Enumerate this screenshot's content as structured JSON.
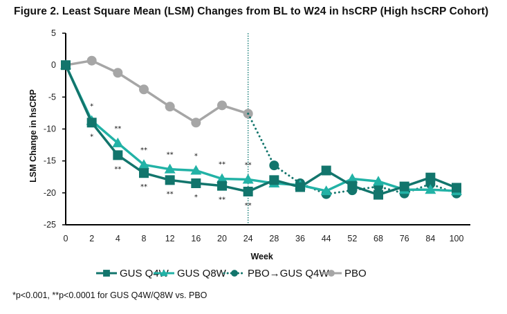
{
  "title": "Figure 2. Least Square Mean (LSM) Changes from BL to W24 in hsCRP (High hsCRP Cohort)",
  "footnote": "*p<0.001, **p<0.0001 for GUS Q4W/Q8W vs. PBO",
  "chart_data": {
    "type": "line",
    "title": "Figure 2. Least Square Mean (LSM) Changes from BL to W24 in hsCRP (High hsCRP Cohort)",
    "xlabel": "Week",
    "ylabel": "LSM Change in hsCRP",
    "categories": [
      "0",
      "2",
      "4",
      "8",
      "12",
      "16",
      "20",
      "24",
      "28",
      "36",
      "44",
      "52",
      "68",
      "76",
      "84",
      "100"
    ],
    "ylim": [
      -25,
      5
    ],
    "yticks": [
      5,
      0,
      -5,
      -10,
      -15,
      -20,
      -25
    ],
    "grid": false,
    "legend_position": "bottom",
    "reference_line": {
      "x_category": "24",
      "style": "dotted",
      "color": "#1B7F7A"
    },
    "series": [
      {
        "name": "GUS Q4W",
        "color": "#12756C",
        "marker": "square",
        "line": "solid",
        "values": [
          0,
          -9.0,
          -14.1,
          -16.9,
          -18.0,
          -18.5,
          -18.9,
          -19.8,
          -18.0,
          -19.1,
          -16.5,
          -18.9,
          -20.3,
          -19.0,
          -17.6,
          -19.2
        ]
      },
      {
        "name": "GUS Q8W",
        "color": "#22B2A6",
        "marker": "triangle",
        "line": "solid",
        "values": [
          0,
          -8.7,
          -12.2,
          -15.6,
          -16.3,
          -16.5,
          -17.8,
          -17.9,
          -18.5,
          -18.8,
          -19.7,
          -17.8,
          -18.2,
          -19.5,
          -19.5,
          -19.7
        ]
      },
      {
        "name": "PBO→GUS Q4W",
        "color": "#12756C",
        "marker": "circle",
        "line": "dotted",
        "values": [
          null,
          null,
          null,
          null,
          null,
          null,
          null,
          -7.6,
          -15.7,
          -18.5,
          -20.2,
          -19.6,
          -19.0,
          -20.1,
          -18.6,
          -20.1
        ]
      },
      {
        "name": "PBO",
        "color": "#A6A6A6",
        "marker": "circle",
        "line": "solid",
        "values": [
          0,
          0.7,
          -1.2,
          -3.8,
          -6.5,
          -9.0,
          -6.3,
          -7.6,
          null,
          null,
          null,
          null,
          null,
          null,
          null,
          null
        ]
      }
    ],
    "annotations": [
      {
        "category": "2",
        "above": "*",
        "below": "*"
      },
      {
        "category": "4",
        "above": "**",
        "below": "**"
      },
      {
        "category": "8",
        "above": "**",
        "below": "**"
      },
      {
        "category": "12",
        "above": "**",
        "below": "**"
      },
      {
        "category": "16",
        "above": "*",
        "below": "*"
      },
      {
        "category": "20",
        "above": "**",
        "below": "**"
      },
      {
        "category": "24",
        "above": "**",
        "below": "**"
      }
    ]
  }
}
